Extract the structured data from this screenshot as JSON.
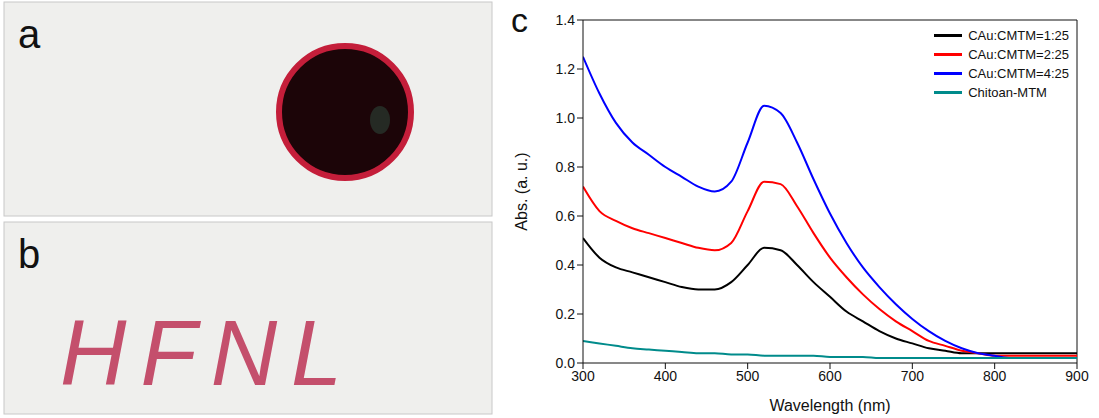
{
  "panel_labels": [
    "a",
    "b",
    "c"
  ],
  "photo_text": "HFNL",
  "chart_data": {
    "type": "line",
    "x_label": "Wavelength (nm)",
    "y_label": "Abs. (a. u.)",
    "x": [
      300,
      320,
      340,
      360,
      380,
      400,
      420,
      440,
      460,
      480,
      500,
      520,
      540,
      560,
      580,
      600,
      620,
      640,
      660,
      680,
      700,
      720,
      740,
      760,
      780,
      800,
      820,
      840,
      860,
      880,
      900
    ],
    "series": [
      {
        "name": "CAu:CMTM=1:25",
        "color": "#000000",
        "values": [
          0.51,
          0.43,
          0.39,
          0.37,
          0.35,
          0.33,
          0.31,
          0.3,
          0.3,
          0.33,
          0.4,
          0.47,
          0.46,
          0.4,
          0.33,
          0.27,
          0.21,
          0.17,
          0.13,
          0.1,
          0.08,
          0.06,
          0.05,
          0.04,
          0.04,
          0.04,
          0.04,
          0.04,
          0.04,
          0.04,
          0.04
        ]
      },
      {
        "name": "CAu:CMTM=2:25",
        "color": "#ff0000",
        "values": [
          0.72,
          0.62,
          0.58,
          0.55,
          0.53,
          0.51,
          0.49,
          0.47,
          0.46,
          0.49,
          0.62,
          0.74,
          0.73,
          0.64,
          0.53,
          0.43,
          0.35,
          0.28,
          0.22,
          0.17,
          0.13,
          0.09,
          0.07,
          0.05,
          0.04,
          0.03,
          0.03,
          0.03,
          0.03,
          0.03,
          0.03
        ]
      },
      {
        "name": "CAu:CMTM=4:25",
        "color": "#0000ff",
        "values": [
          1.25,
          1.1,
          0.98,
          0.9,
          0.85,
          0.8,
          0.76,
          0.72,
          0.7,
          0.74,
          0.9,
          1.05,
          1.02,
          0.9,
          0.75,
          0.61,
          0.49,
          0.39,
          0.31,
          0.24,
          0.18,
          0.13,
          0.09,
          0.06,
          0.04,
          0.03,
          0.02,
          0.02,
          0.02,
          0.02,
          0.02
        ]
      },
      {
        "name": "Chitoan-MTM",
        "color": "#008b8b",
        "values": [
          0.09,
          0.08,
          0.07,
          0.06,
          0.055,
          0.05,
          0.045,
          0.04,
          0.04,
          0.035,
          0.035,
          0.03,
          0.03,
          0.03,
          0.03,
          0.025,
          0.025,
          0.025,
          0.02,
          0.02,
          0.02,
          0.02,
          0.02,
          0.02,
          0.02,
          0.02,
          0.02,
          0.02,
          0.02,
          0.02,
          0.02
        ]
      }
    ],
    "xlim": [
      300,
      900
    ],
    "xticks": [
      300,
      400,
      500,
      600,
      700,
      800,
      900
    ],
    "ylim": [
      0,
      1.4
    ],
    "yticks": [
      {
        "value": 0,
        "label": "0.0"
      },
      0.2,
      0.4,
      0.6,
      0.8,
      {
        "value": 1,
        "label": "1.0"
      },
      1.2,
      1.4
    ],
    "legend": "top-right",
    "grid": false
  }
}
